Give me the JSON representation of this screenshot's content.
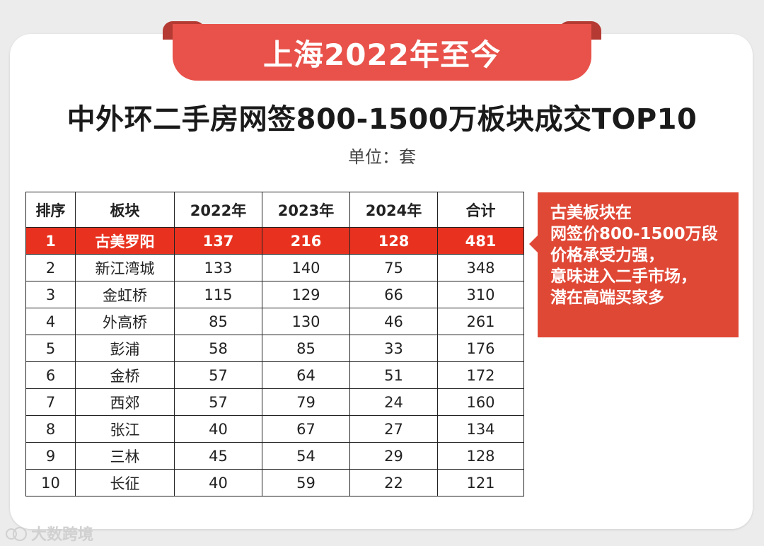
{
  "banner": {
    "title": "上海2022年至今"
  },
  "title": "中外环二手房网签800-1500万板块成交TOP10",
  "unit": "单位：套",
  "table": {
    "headers": [
      "排序",
      "板块",
      "2022年",
      "2023年",
      "2024年",
      "合计"
    ],
    "rows": [
      [
        "1",
        "古美罗阳",
        "137",
        "216",
        "128",
        "481"
      ],
      [
        "2",
        "新江湾城",
        "133",
        "140",
        "75",
        "348"
      ],
      [
        "3",
        "金虹桥",
        "115",
        "129",
        "66",
        "310"
      ],
      [
        "4",
        "外高桥",
        "85",
        "130",
        "46",
        "261"
      ],
      [
        "5",
        "彭浦",
        "58",
        "85",
        "33",
        "176"
      ],
      [
        "6",
        "金桥",
        "57",
        "64",
        "51",
        "172"
      ],
      [
        "7",
        "西郊",
        "57",
        "79",
        "24",
        "160"
      ],
      [
        "8",
        "张江",
        "40",
        "67",
        "27",
        "134"
      ],
      [
        "9",
        "三林",
        "45",
        "54",
        "29",
        "128"
      ],
      [
        "10",
        "长征",
        "40",
        "59",
        "22",
        "121"
      ]
    ]
  },
  "note": {
    "lines": [
      "古美板块在",
      "网签价800-1500万段",
      "价格承受力强，",
      "意味进入二手市场，",
      "潜在高端买家多"
    ]
  },
  "watermark": {
    "text": "大数跨境",
    "icon": "logo-icon"
  },
  "colors": {
    "accent": "#e8524a",
    "highlight_row": "#e8321f",
    "note_bg": "#e04836"
  }
}
